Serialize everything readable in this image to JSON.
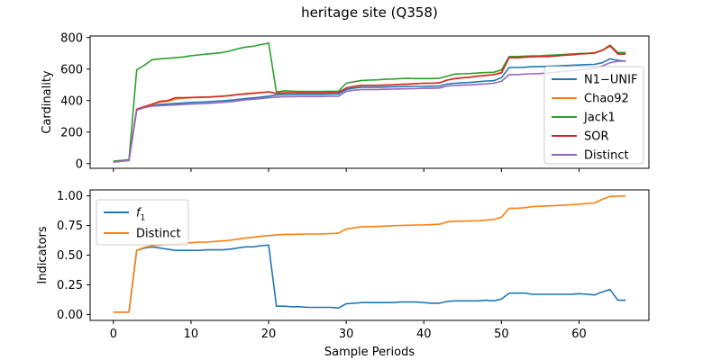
{
  "figure": {
    "title": "heritage site (Q358)"
  },
  "chart_data": [
    {
      "type": "line",
      "xlabel": "",
      "ylabel": "Cardinality",
      "xlim": [
        -3,
        69
      ],
      "ylim": [
        -30,
        810
      ],
      "xticks": [
        0,
        10,
        20,
        30,
        40,
        50,
        60
      ],
      "yticks": [
        0,
        200,
        400,
        600,
        800
      ],
      "grid": false,
      "legend_position": "right",
      "x": [
        0,
        1,
        2,
        3,
        4,
        5,
        6,
        7,
        8,
        9,
        10,
        11,
        12,
        13,
        14,
        15,
        16,
        17,
        18,
        19,
        20,
        21,
        22,
        23,
        24,
        25,
        26,
        27,
        28,
        29,
        30,
        31,
        32,
        33,
        34,
        35,
        36,
        37,
        38,
        39,
        40,
        41,
        42,
        43,
        44,
        45,
        46,
        47,
        48,
        49,
        50,
        51,
        52,
        53,
        54,
        55,
        56,
        57,
        58,
        59,
        60,
        61,
        62,
        63,
        64,
        65,
        66
      ],
      "series": [
        {
          "name": "N1−UNIF",
          "color": "#1f77b4",
          "values": [
            10,
            15,
            20,
            345,
            358,
            368,
            375,
            378,
            382,
            385,
            388,
            390,
            392,
            395,
            398,
            402,
            407,
            412,
            417,
            422,
            428,
            435,
            438,
            438,
            440,
            440,
            440,
            440,
            441,
            442,
            470,
            480,
            485,
            485,
            485,
            486,
            487,
            488,
            490,
            490,
            490,
            491,
            492,
            505,
            510,
            512,
            515,
            520,
            524,
            526,
            545,
            610,
            610,
            612,
            615,
            615,
            618,
            620,
            622,
            624,
            626,
            628,
            630,
            640,
            665,
            655,
            650
          ]
        },
        {
          "name": "Chao92",
          "color": "#ff7f0e",
          "values": [
            10,
            15,
            20,
            345,
            360,
            375,
            390,
            395,
            410,
            415,
            418,
            420,
            422,
            425,
            428,
            430,
            438,
            445,
            448,
            452,
            455,
            444,
            448,
            450,
            450,
            450,
            450,
            450,
            451,
            452,
            480,
            490,
            497,
            497,
            497,
            498,
            500,
            503,
            505,
            508,
            510,
            510,
            512,
            530,
            540,
            545,
            548,
            555,
            560,
            565,
            580,
            675,
            670,
            675,
            678,
            680,
            680,
            685,
            690,
            695,
            698,
            700,
            705,
            720,
            745,
            700,
            700
          ]
        },
        {
          "name": "Jack1",
          "color": "#2ca02c",
          "values": [
            15,
            20,
            25,
            595,
            625,
            660,
            665,
            668,
            672,
            677,
            685,
            690,
            695,
            700,
            705,
            715,
            728,
            740,
            745,
            755,
            765,
            455,
            462,
            460,
            458,
            458,
            458,
            458,
            459,
            460,
            510,
            520,
            528,
            530,
            532,
            535,
            537,
            540,
            542,
            540,
            540,
            540,
            542,
            555,
            568,
            570,
            572,
            575,
            578,
            580,
            595,
            680,
            680,
            682,
            684,
            685,
            688,
            690,
            692,
            695,
            698,
            700,
            702,
            720,
            752,
            705,
            705
          ]
        },
        {
          "name": "SOR",
          "color": "#d62728",
          "values": [
            10,
            15,
            20,
            345,
            362,
            378,
            395,
            400,
            418,
            418,
            420,
            422,
            422,
            425,
            428,
            432,
            438,
            442,
            446,
            450,
            455,
            446,
            450,
            450,
            450,
            450,
            450,
            450,
            451,
            452,
            480,
            490,
            497,
            497,
            497,
            498,
            500,
            503,
            505,
            508,
            510,
            510,
            512,
            530,
            540,
            545,
            548,
            555,
            560,
            565,
            575,
            672,
            672,
            675,
            678,
            680,
            680,
            683,
            688,
            690,
            695,
            698,
            702,
            718,
            748,
            695,
            695
          ]
        },
        {
          "name": "Distinct",
          "color": "#9467bd",
          "values": [
            10,
            15,
            20,
            340,
            355,
            365,
            368,
            370,
            372,
            375,
            378,
            380,
            382,
            385,
            388,
            392,
            398,
            404,
            408,
            412,
            418,
            422,
            425,
            425,
            426,
            426,
            426,
            426,
            427,
            428,
            458,
            466,
            470,
            470,
            470,
            472,
            473,
            474,
            475,
            476,
            478,
            478,
            480,
            492,
            496,
            498,
            500,
            503,
            506,
            510,
            522,
            565,
            565,
            568,
            570,
            572,
            575,
            580,
            585,
            590,
            595,
            600,
            605,
            620,
            640,
            650,
            650
          ]
        }
      ]
    },
    {
      "type": "line",
      "xlabel": "Sample Periods",
      "ylabel": "Indicators",
      "xlim": [
        -3,
        69
      ],
      "ylim": [
        -0.05,
        1.05
      ],
      "xticks": [
        0,
        10,
        20,
        30,
        40,
        50,
        60
      ],
      "yticks": [
        0.0,
        0.25,
        0.5,
        0.75,
        1.0
      ],
      "ytick_labels": [
        "0.00",
        "0.25",
        "0.50",
        "0.75",
        "1.00"
      ],
      "grid": false,
      "legend_position": "top-left",
      "x": [
        0,
        1,
        2,
        3,
        4,
        5,
        6,
        7,
        8,
        9,
        10,
        11,
        12,
        13,
        14,
        15,
        16,
        17,
        18,
        19,
        20,
        21,
        22,
        23,
        24,
        25,
        26,
        27,
        28,
        29,
        30,
        31,
        32,
        33,
        34,
        35,
        36,
        37,
        38,
        39,
        40,
        41,
        42,
        43,
        44,
        45,
        46,
        47,
        48,
        49,
        50,
        51,
        52,
        53,
        54,
        55,
        56,
        57,
        58,
        59,
        60,
        61,
        62,
        63,
        64,
        65,
        66
      ],
      "series": [
        {
          "name": "f",
          "name_subscript": "1",
          "color": "#1f77b4",
          "values": [
            0.02,
            0.02,
            0.02,
            0.54,
            0.56,
            0.57,
            0.56,
            0.55,
            0.54,
            0.54,
            0.54,
            0.54,
            0.545,
            0.545,
            0.545,
            0.55,
            0.56,
            0.57,
            0.57,
            0.58,
            0.585,
            0.07,
            0.07,
            0.065,
            0.065,
            0.06,
            0.06,
            0.06,
            0.06,
            0.055,
            0.09,
            0.095,
            0.1,
            0.1,
            0.1,
            0.1,
            0.1,
            0.105,
            0.105,
            0.105,
            0.1,
            0.095,
            0.095,
            0.11,
            0.115,
            0.115,
            0.115,
            0.115,
            0.12,
            0.115,
            0.13,
            0.18,
            0.18,
            0.18,
            0.17,
            0.17,
            0.17,
            0.17,
            0.17,
            0.17,
            0.175,
            0.17,
            0.165,
            0.19,
            0.21,
            0.12,
            0.12
          ]
        },
        {
          "name": "Distinct",
          "color": "#ff7f0e",
          "values": [
            0.02,
            0.02,
            0.02,
            0.54,
            0.565,
            0.58,
            0.585,
            0.59,
            0.595,
            0.6,
            0.605,
            0.61,
            0.61,
            0.615,
            0.62,
            0.625,
            0.635,
            0.645,
            0.65,
            0.66,
            0.665,
            0.67,
            0.675,
            0.675,
            0.677,
            0.678,
            0.678,
            0.68,
            0.682,
            0.685,
            0.72,
            0.73,
            0.74,
            0.74,
            0.742,
            0.745,
            0.748,
            0.75,
            0.752,
            0.754,
            0.755,
            0.757,
            0.76,
            0.78,
            0.785,
            0.787,
            0.789,
            0.79,
            0.795,
            0.8,
            0.82,
            0.895,
            0.895,
            0.9,
            0.91,
            0.912,
            0.915,
            0.918,
            0.92,
            0.925,
            0.93,
            0.935,
            0.94,
            0.97,
            0.995,
            0.998,
            1.0
          ]
        }
      ]
    }
  ]
}
